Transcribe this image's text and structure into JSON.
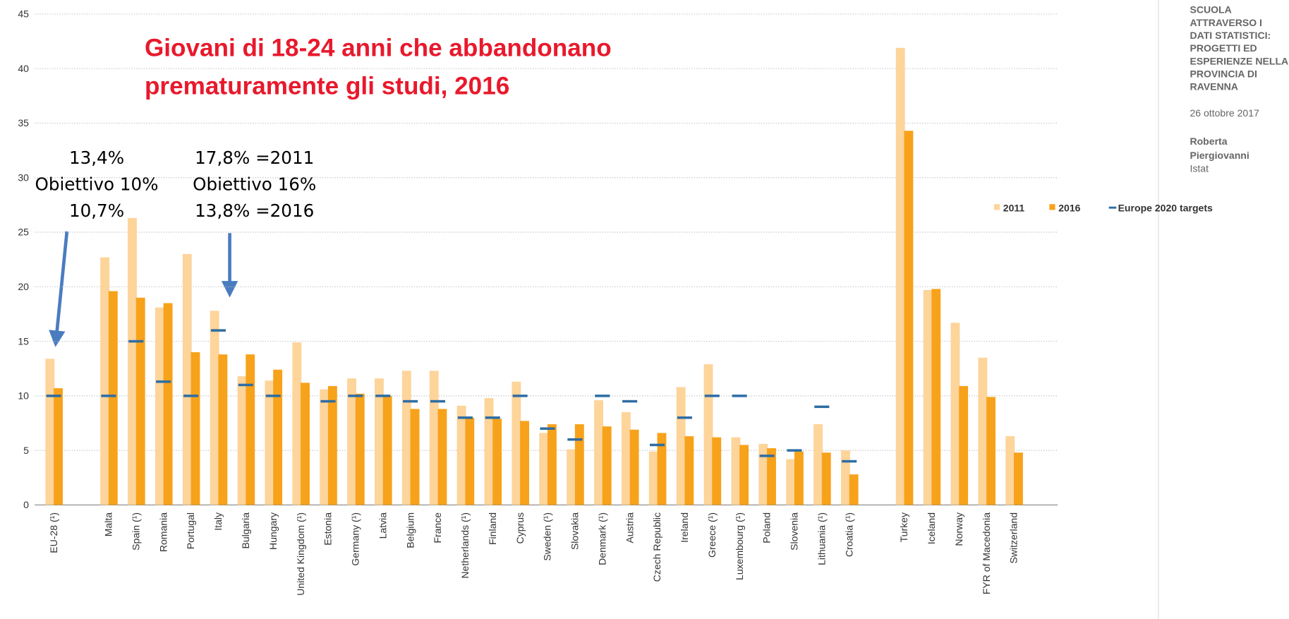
{
  "chart_data": {
    "type": "bar",
    "title": [
      "Giovani di 18-24 anni che abbandonano",
      "premat­uramente gli studi, 2016"
    ],
    "annotations": [
      [
        "13,4%",
        "Obiettivo 10%",
        "10,7%"
      ],
      [
        "17,8% =2011",
        "Obiettivo 16%",
        "13,8% =2016"
      ]
    ],
    "categories": [
      "EU-28 (¹)",
      null,
      "Malta",
      "Spain (¹)",
      "Romania",
      "Portugal",
      "Italy",
      "Bulgaria",
      "Hungary",
      "United Kingdom (¹)",
      "Estonia",
      "Germany (¹)",
      "Latvia",
      "Belgium",
      "France",
      "Netherlands (¹)",
      "Finland",
      "Cyprus",
      "Sweden (¹)",
      "Slovakia",
      "Denmark (¹)",
      "Austria",
      "Czech Republic",
      "Ireland",
      "Greece (¹)",
      "Luxembourg (¹)",
      "Poland",
      "Slovenia",
      "Lithuania (¹)",
      "Croatia (¹)",
      null,
      "Turkey",
      "Iceland",
      "Norway",
      "FYR of Macedonia",
      "Switzerland"
    ],
    "series": [
      {
        "name": "2011",
        "color": "#fdd49a",
        "values": [
          13.4,
          null,
          22.7,
          26.3,
          18.1,
          23.0,
          17.8,
          11.8,
          11.4,
          14.9,
          10.6,
          11.6,
          11.6,
          12.3,
          12.3,
          9.1,
          9.8,
          11.3,
          6.6,
          5.1,
          9.6,
          8.5,
          4.9,
          10.8,
          12.9,
          6.2,
          5.6,
          4.2,
          7.4,
          5.0,
          null,
          41.9,
          19.7,
          16.7,
          13.5,
          6.3
        ]
      },
      {
        "name": "2016",
        "color": "#f7a21b",
        "values": [
          10.7,
          null,
          19.6,
          19.0,
          18.5,
          14.0,
          13.8,
          13.8,
          12.4,
          11.2,
          10.9,
          10.2,
          10.0,
          8.8,
          8.8,
          8.0,
          7.9,
          7.7,
          7.4,
          7.4,
          7.2,
          6.9,
          6.6,
          6.3,
          6.2,
          5.5,
          5.2,
          4.9,
          4.8,
          2.8,
          null,
          34.3,
          19.8,
          10.9,
          9.9,
          4.8
        ]
      },
      {
        "name": "Europe 2020 targets",
        "color": "#2e6da4",
        "values": [
          10,
          null,
          10,
          15,
          11.3,
          10,
          16,
          11,
          10,
          null,
          9.5,
          10,
          10,
          9.5,
          9.5,
          8,
          8,
          10,
          7,
          6,
          10,
          9.5,
          5.5,
          8,
          10,
          10,
          4.5,
          5,
          9,
          4,
          null,
          null,
          null,
          null,
          null,
          null
        ]
      }
    ],
    "ylim": [
      0,
      45
    ],
    "yticks": [
      0,
      5,
      10,
      15,
      20,
      25,
      30,
      35,
      40,
      45
    ],
    "grid": true
  },
  "sidebar": {
    "lines": [
      "SCUOLA",
      "ATTRAVERSO I",
      "DATI STATISTICI:",
      "PROGETTI ED",
      "ESPERIENZE NELLA",
      "PROVINCIA DI",
      "RAVENNA"
    ],
    "date": "26 ottobre 2017",
    "author": [
      "Roberta",
      "Piergiovanni"
    ],
    "org": "Istat"
  }
}
